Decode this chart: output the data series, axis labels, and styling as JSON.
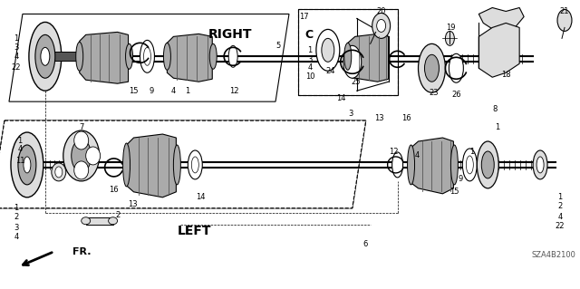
{
  "fig_width": 6.4,
  "fig_height": 3.19,
  "dpi": 100,
  "bg": "#ffffff",
  "black": "#000000",
  "gray": "#888888",
  "dark": "#555555",
  "light_gray": "#dddddd",
  "mid_gray": "#aaaaaa",
  "diagram_code": "SZA4B2100",
  "right_label": "RIGHT",
  "left_label": "LEFT",
  "fr_label": "FR."
}
